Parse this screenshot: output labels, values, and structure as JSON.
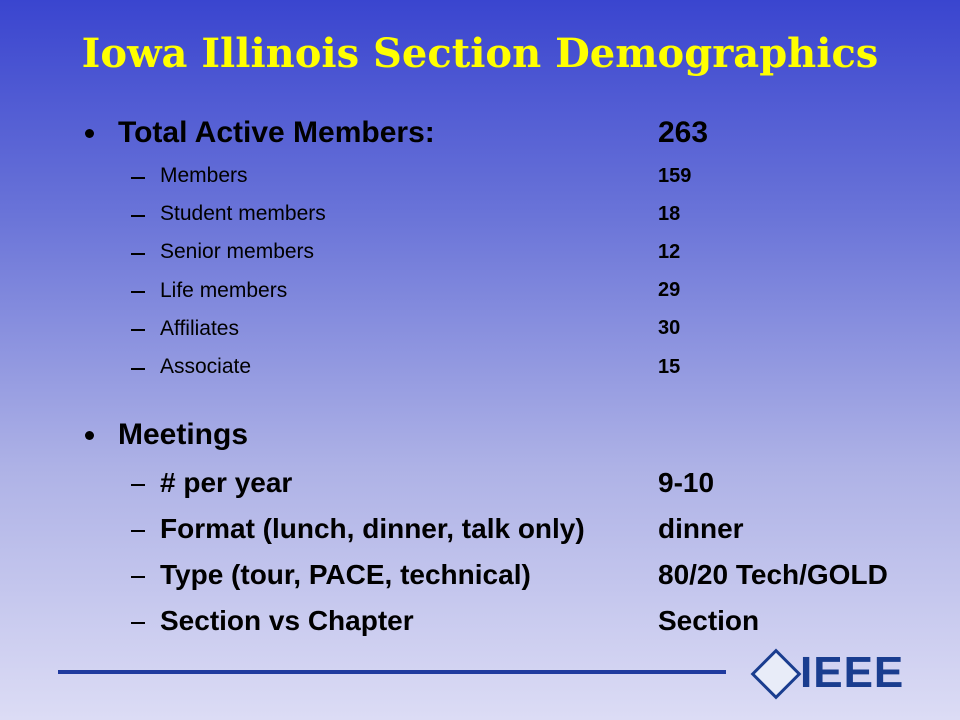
{
  "header": {
    "title": "Iowa Illinois Section Demographics"
  },
  "sections": [
    {
      "label": "Total Active Members:",
      "value": 263,
      "items": [
        {
          "label": "Members",
          "value": 159
        },
        {
          "label": "Student members",
          "value": 18
        },
        {
          "label": "Senior members",
          "value": 12
        },
        {
          "label": "Life members",
          "value": 29
        },
        {
          "label": "Affiliates",
          "value": 30
        },
        {
          "label": "Associate",
          "value": 15
        }
      ]
    },
    {
      "label": "Meetings",
      "items": [
        {
          "label": "# per year",
          "value": "9-10"
        },
        {
          "label": "Format (lunch, dinner, talk only)",
          "value": "dinner"
        },
        {
          "label": "Type (tour, PACE, technical)",
          "value": "80/20 Tech/GOLD"
        },
        {
          "label": "Section vs Chapter",
          "value": "Section"
        }
      ]
    }
  ],
  "footer": {
    "logo": "IEEE"
  }
}
